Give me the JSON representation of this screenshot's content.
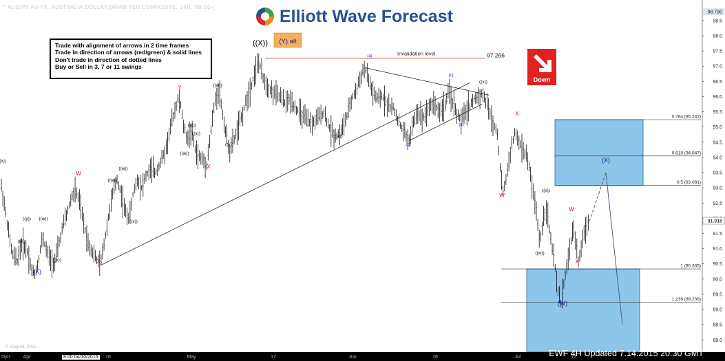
{
  "header": {
    "title": "* AUDJPY A0-FX, AUSTRALIA DOLLAR/JAPAN YEN COMPOSITE, 240, 00:00-|"
  },
  "brand": {
    "name": "Elliott Wave Forecast",
    "logo_icon": "swirl-logo-icon",
    "colors": {
      "blue": "#2a4f8f",
      "green": "#3aa346",
      "orange": "#f08a1c",
      "red": "#d8262e"
    }
  },
  "rules": [
    "Trade with alignment of arrows in 2 time frames",
    "Trade in direction of arrows (red/green) & solid lines",
    "Don't trade in direction of dotted lines",
    "Buy or Sell in 3, 7 or 11 swings"
  ],
  "badge": {
    "label": "Down",
    "icon": "arrow-down-right-icon",
    "color": "#e12020"
  },
  "footer": {
    "stamp": "EWF 4H Updated 7.14.2015 20.30 GMT",
    "copyright": "© eSignal, 2015",
    "crosshair_date": "8:00 04/10/2015",
    "dyn": "Dyn"
  },
  "chart_data": {
    "type": "ohlc",
    "instrument": "AUDJPY",
    "timeframe": "240",
    "y_axis": {
      "ticks": [
        88.0,
        88.5,
        89.0,
        89.5,
        90.0,
        90.5,
        91.0,
        91.5,
        92.0,
        92.5,
        93.0,
        93.5,
        94.0,
        94.5,
        95.0,
        95.5,
        96.0,
        96.5,
        97.0,
        97.5,
        98.0,
        98.5
      ],
      "top_label": "98.790",
      "current_price": "91.918",
      "ylim": [
        87.6,
        98.95
      ]
    },
    "x_axis": {
      "ticks": [
        "Apr",
        "16",
        "May",
        "17",
        "Jun",
        "16",
        "Jul",
        "12"
      ]
    },
    "price_path": [
      [
        0,
        93.3
      ],
      [
        6,
        92.5
      ],
      [
        12,
        91.6
      ],
      [
        18,
        90.8
      ],
      [
        25,
        90.6
      ],
      [
        32,
        91.2
      ],
      [
        40,
        90.9
      ],
      [
        46,
        90.3
      ],
      [
        50,
        90.15
      ],
      [
        55,
        90.5
      ],
      [
        62,
        91.4
      ],
      [
        68,
        90.9
      ],
      [
        74,
        90.6
      ],
      [
        80,
        90.55
      ],
      [
        86,
        91.2
      ],
      [
        92,
        91.8
      ],
      [
        98,
        92.2
      ],
      [
        104,
        92.7
      ],
      [
        110,
        92.9
      ],
      [
        116,
        92.5
      ],
      [
        122,
        91.8
      ],
      [
        128,
        91.2
      ],
      [
        134,
        90.9
      ],
      [
        140,
        90.65
      ],
      [
        146,
        90.45
      ],
      [
        152,
        91.3
      ],
      [
        158,
        92.1
      ],
      [
        164,
        92.8
      ],
      [
        170,
        93.3
      ],
      [
        176,
        92.8
      ],
      [
        182,
        92.2
      ],
      [
        188,
        92.0
      ],
      [
        194,
        92.9
      ],
      [
        200,
        93.3
      ],
      [
        206,
        93.0
      ],
      [
        212,
        93.4
      ],
      [
        218,
        93.6
      ],
      [
        226,
        93.5
      ],
      [
        234,
        93.9
      ],
      [
        240,
        94.2
      ],
      [
        246,
        94.8
      ],
      [
        252,
        95.4
      ],
      [
        258,
        95.9
      ],
      [
        262,
        95.8
      ],
      [
        266,
        95.1
      ],
      [
        272,
        94.6
      ],
      [
        278,
        94.9
      ],
      [
        284,
        94.2
      ],
      [
        290,
        94.0
      ],
      [
        296,
        93.9
      ],
      [
        300,
        93.75
      ],
      [
        306,
        94.8
      ],
      [
        312,
        95.8
      ],
      [
        318,
        96.3
      ],
      [
        322,
        95.6
      ],
      [
        328,
        94.8
      ],
      [
        334,
        94.2
      ],
      [
        340,
        94.6
      ],
      [
        346,
        95.0
      ],
      [
        352,
        95.4
      ],
      [
        358,
        95.9
      ],
      [
        364,
        96.3
      ],
      [
        370,
        96.8
      ],
      [
        376,
        97.15
      ],
      [
        382,
        96.6
      ],
      [
        390,
        96.3
      ],
      [
        398,
        96.1
      ],
      [
        406,
        96.0
      ],
      [
        414,
        95.8
      ],
      [
        422,
        95.9
      ],
      [
        430,
        95.6
      ],
      [
        438,
        95.4
      ],
      [
        446,
        95.2
      ],
      [
        454,
        95.1
      ],
      [
        462,
        95.3
      ],
      [
        470,
        95.5
      ],
      [
        478,
        95.0
      ],
      [
        486,
        94.7
      ],
      [
        494,
        94.8
      ],
      [
        500,
        95.1
      ],
      [
        506,
        95.5
      ],
      [
        512,
        96.0
      ],
      [
        518,
        96.2
      ],
      [
        524,
        96.7
      ],
      [
        530,
        96.95
      ],
      [
        536,
        96.5
      ],
      [
        542,
        96.1
      ],
      [
        548,
        95.9
      ],
      [
        556,
        96.0
      ],
      [
        564,
        95.7
      ],
      [
        572,
        95.6
      ],
      [
        580,
        95.1
      ],
      [
        588,
        94.8
      ],
      [
        594,
        94.55
      ],
      [
        600,
        95.1
      ],
      [
        606,
        95.5
      ],
      [
        614,
        95.3
      ],
      [
        622,
        95.6
      ],
      [
        630,
        95.8
      ],
      [
        638,
        95.5
      ],
      [
        646,
        95.7
      ],
      [
        652,
        96.15
      ],
      [
        658,
        95.8
      ],
      [
        664,
        95.4
      ],
      [
        670,
        95.2
      ],
      [
        676,
        95.5
      ],
      [
        682,
        95.7
      ],
      [
        688,
        95.9
      ],
      [
        694,
        96.0
      ],
      [
        700,
        96.1
      ],
      [
        704,
        95.9
      ],
      [
        710,
        95.6
      ],
      [
        716,
        95.1
      ],
      [
        722,
        94.9
      ],
      [
        726,
        93.8
      ],
      [
        730,
        92.8
      ],
      [
        736,
        93.4
      ],
      [
        742,
        94.3
      ],
      [
        748,
        94.8
      ],
      [
        752,
        94.6
      ],
      [
        758,
        94.3
      ],
      [
        764,
        94.1
      ],
      [
        770,
        93.5
      ],
      [
        774,
        92.9
      ],
      [
        778,
        92.4
      ],
      [
        784,
        91.2
      ],
      [
        790,
        92.1
      ],
      [
        794,
        92.4
      ],
      [
        798,
        91.6
      ],
      [
        802,
        91.0
      ],
      [
        806,
        90.4
      ],
      [
        810,
        89.6
      ],
      [
        815,
        89.2
      ],
      [
        819,
        89.9
      ],
      [
        824,
        90.5
      ],
      [
        828,
        91.0
      ],
      [
        832,
        91.7
      ],
      [
        836,
        91.3
      ],
      [
        840,
        90.6
      ],
      [
        844,
        90.9
      ],
      [
        848,
        91.5
      ],
      [
        852,
        91.8
      ],
      [
        856,
        91.9
      ]
    ],
    "projection": {
      "style": "dashed",
      "points": [
        [
          856,
          91.9
        ],
        [
          880,
          93.5
        ]
      ]
    },
    "forecast_line": {
      "style": "solid",
      "points": [
        [
          880,
          93.5
        ],
        [
          904,
          88.5
        ]
      ]
    },
    "fib_levels": [
      {
        "label": "0.764 (95.242)",
        "value": 95.242
      },
      {
        "label": "0.618 (94.047)",
        "value": 94.047
      },
      {
        "label": "0.5 (93.081)",
        "value": 93.081
      },
      {
        "label": "1 (90.335)",
        "value": 90.335
      },
      {
        "label": "1.236 (89.236)",
        "value": 89.236
      }
    ],
    "zones": [
      {
        "name": "upper-blue-box",
        "from": 93.081,
        "to": 95.242
      },
      {
        "name": "lower-blue-box",
        "from": 87.6,
        "to": 90.335
      }
    ],
    "invalidation": {
      "label": "Invalidation level",
      "value_label": "97.266",
      "value": 97.266
    },
    "wave_labels": [
      {
        "text": "((X))",
        "color": "#000000"
      },
      {
        "text": "(Y) alt",
        "color": "#1a1aa0"
      },
      {
        "text": "(X)",
        "color": "#1a1aa0"
      },
      {
        "text": "(X)",
        "color": "#1a1aa0"
      },
      {
        "text": "(W)",
        "color": "#1a1aa0"
      },
      {
        "text": "Y",
        "color": "#d11"
      },
      {
        "text": "W",
        "color": "#d11"
      },
      {
        "text": "X",
        "color": "#d11"
      },
      {
        "text": "X",
        "color": "#d11"
      },
      {
        "text": "X",
        "color": "#d11"
      },
      {
        "text": "W",
        "color": "#d11"
      },
      {
        "text": "X",
        "color": "#d11"
      },
      {
        "text": "W",
        "color": "#d11"
      },
      {
        "text": "(a)",
        "color": "#1a1aa0"
      },
      {
        "text": "(b)",
        "color": "#1a1aa0"
      },
      {
        "text": "(c)",
        "color": "#1a1aa0"
      },
      {
        "text": "(d)",
        "color": "#1a1aa0"
      },
      {
        "text": "((x))",
        "color": "#000000"
      },
      {
        "text": "((w))",
        "color": "#000000"
      },
      {
        "text": "((w))",
        "color": "#000000"
      },
      {
        "text": "((x))",
        "color": "#000000"
      },
      {
        "text": "((w))",
        "color": "#000000"
      },
      {
        "text": "((x))",
        "color": "#000000"
      },
      {
        "text": "((w))",
        "color": "#000000"
      },
      {
        "text": "((x))",
        "color": "#000000"
      },
      {
        "text": "((y))",
        "color": "#000000"
      },
      {
        "text": "((w))",
        "color": "#000000"
      },
      {
        "text": "((x))",
        "color": "#000000"
      },
      {
        "text": "((w))",
        "color": "#000000"
      },
      {
        "text": "((x))",
        "color": "#000000"
      },
      {
        "text": "((w))",
        "color": "#000000"
      },
      {
        "text": "((x))",
        "color": "#000000"
      },
      {
        "text": "((iii))",
        "color": "#000000"
      },
      {
        "text": "((x))",
        "color": "#000000"
      }
    ],
    "trendlines": [
      {
        "from": [
          146,
          90.45
        ],
        "to": [
          682,
          96.45
        ]
      },
      {
        "from": [
          530,
          96.95
        ],
        "to": [
          710,
          96.05
        ]
      },
      {
        "from": [
          594,
          94.55
        ],
        "to": [
          700,
          95.75
        ]
      }
    ],
    "colors": {
      "background": "#ffffff",
      "bars": "#111111",
      "zone": "#79bce8",
      "invalidation": "#d11111"
    }
  }
}
